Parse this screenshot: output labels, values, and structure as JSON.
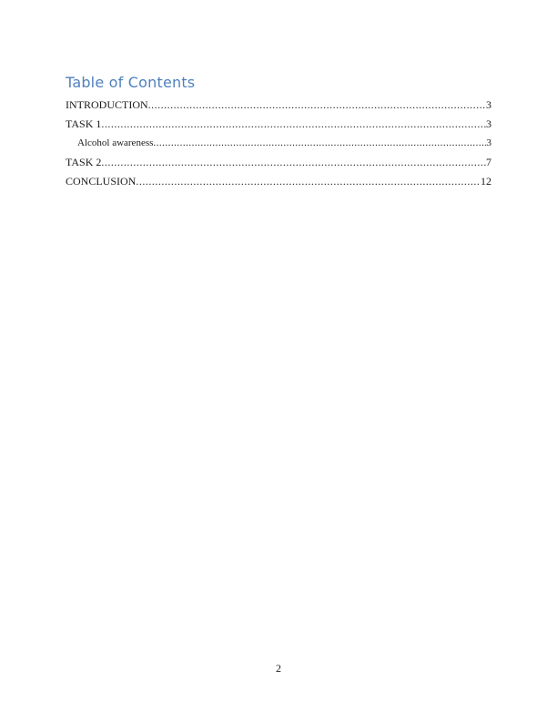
{
  "document": {
    "heading": "Table of Contents",
    "heading_color": "#4F81BD",
    "toc_entries": [
      {
        "label": "INTRODUCTION",
        "page": "3",
        "level": 1
      },
      {
        "label": "TASK 1",
        "page": "3",
        "level": 1
      },
      {
        "label": "Alcohol awareness",
        "page": "3",
        "level": 2
      },
      {
        "label": "TASK 2",
        "page": "7",
        "level": 1
      },
      {
        "label": "CONCLUSION",
        "page": "12",
        "level": 1
      }
    ],
    "footer": {
      "page_number": "2"
    }
  }
}
